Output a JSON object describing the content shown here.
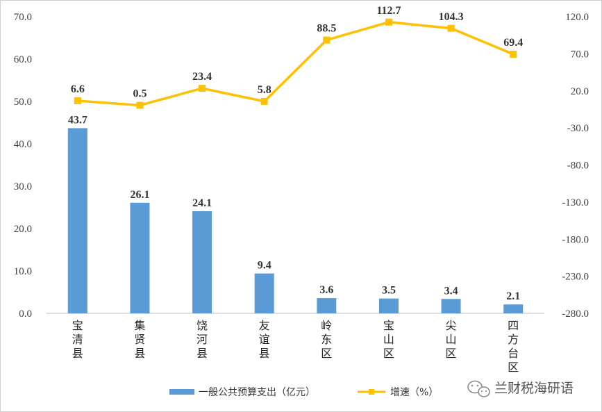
{
  "chart_data": {
    "type": "bar+line",
    "categories": [
      "宝清县",
      "集贤县",
      "饶河县",
      "友谊县",
      "岭东区",
      "宝山区",
      "尖山区",
      "四方台区"
    ],
    "series": [
      {
        "name": "一般公共预算支出（亿元）",
        "type": "bar",
        "axis": "left",
        "color": "#5B9BD5",
        "values": [
          43.7,
          26.1,
          24.1,
          9.4,
          3.6,
          3.5,
          3.4,
          2.1
        ]
      },
      {
        "name": "增速（%）",
        "type": "line",
        "axis": "right",
        "color": "#FFC000",
        "values": [
          6.6,
          0.5,
          23.4,
          5.8,
          88.5,
          112.7,
          104.3,
          69.4
        ]
      }
    ],
    "y_left": {
      "min": 0,
      "max": 70,
      "step": 10,
      "tick_labels": [
        "0.0",
        "10.0",
        "20.0",
        "30.0",
        "40.0",
        "50.0",
        "60.0",
        "70.0"
      ]
    },
    "y_right": {
      "min": -280,
      "max": 120,
      "step": 50,
      "tick_labels": [
        "-280.0",
        "-230.0",
        "-180.0",
        "-130.0",
        "-80.0",
        "-30.0",
        "20.0",
        "70.0",
        "120.0"
      ]
    },
    "bar_labels": [
      "43.7",
      "26.1",
      "24.1",
      "9.4",
      "3.6",
      "3.5",
      "3.4",
      "2.1"
    ],
    "line_labels": [
      "6.6",
      "0.5",
      "23.4",
      "5.8",
      "88.5",
      "112.7",
      "104.3",
      "69.4"
    ],
    "legend_placement": "bottom",
    "grid": false
  },
  "watermark": {
    "text": "兰财税海研语",
    "icon": "wechat-icon"
  }
}
